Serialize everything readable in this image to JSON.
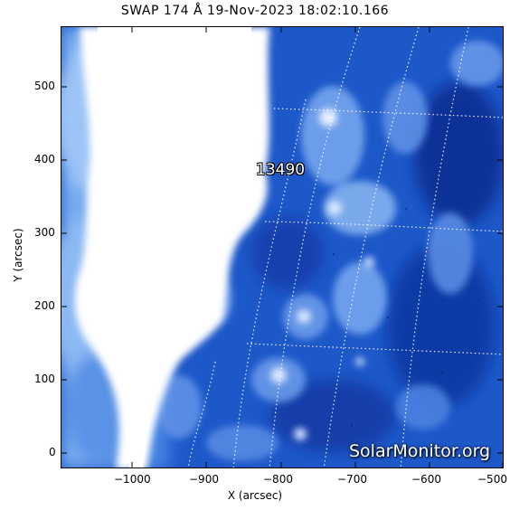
{
  "title": "SWAP 174 Å 19-Nov-2023 18:02:10.166",
  "xlabel": "X (arcsec)",
  "ylabel": "Y (arcsec)",
  "x_ticks": [
    "−1000",
    "−900",
    "−800",
    "−700",
    "−600",
    "−500"
  ],
  "y_ticks": [
    "0",
    "100",
    "200",
    "300",
    "400",
    "500"
  ],
  "active_region": "13490",
  "watermark": "SolarMonitor.org",
  "colors": {
    "background": "#1d58c9",
    "bright": "#ffffff",
    "mid": "#6aa0ee",
    "dark": "#0c2a8f"
  }
}
